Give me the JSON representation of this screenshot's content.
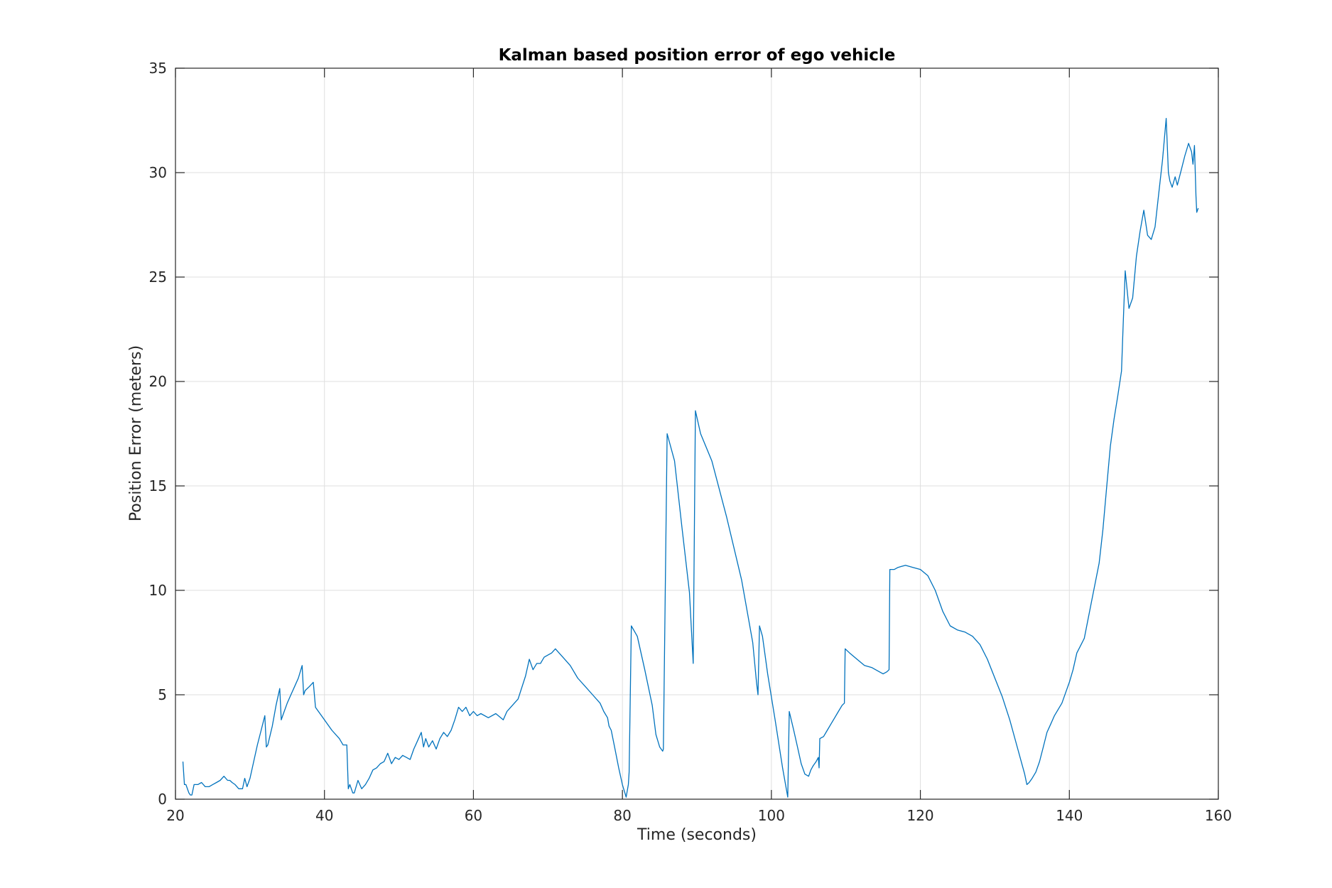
{
  "chart_data": {
    "type": "line",
    "title": "Kalman based position error of ego vehicle",
    "xlabel": "Time (seconds)",
    "ylabel": "Position Error (meters)",
    "xlim": [
      20,
      160
    ],
    "ylim": [
      0,
      35
    ],
    "xticks": [
      "20",
      "40",
      "60",
      "80",
      "100",
      "120",
      "140",
      "160"
    ],
    "yticks": [
      "0",
      "5",
      "10",
      "15",
      "20",
      "25",
      "30",
      "35"
    ],
    "grid": true,
    "line_color": "#0072BD",
    "series": [
      {
        "x": [
          21.0,
          21.2,
          21.4,
          21.8,
          22.0,
          22.2,
          22.5,
          23.0,
          23.5,
          24.0,
          24.5,
          25.0,
          25.5,
          26.0,
          26.5,
          27.0,
          27.3,
          27.6,
          28.0,
          28.5,
          29.0,
          29.3,
          29.6,
          30.0,
          30.5,
          31.0,
          31.5,
          32.0,
          32.2,
          32.4,
          32.6,
          33.0,
          33.5,
          34.0,
          34.2,
          34.5,
          35.0,
          35.5,
          36.0,
          36.5,
          37.0,
          37.2,
          37.4,
          38.0,
          38.5,
          38.8,
          39.0,
          40.0,
          41.0,
          42.0,
          42.5,
          43.0,
          43.2,
          43.4,
          43.8,
          44.0,
          44.5,
          45.0,
          45.5,
          46.0,
          46.5,
          47.0,
          47.5,
          48.0,
          48.5,
          49.0,
          49.5,
          50.0,
          50.5,
          51.0,
          51.5,
          52.0,
          52.5,
          53.0,
          53.3,
          53.6,
          54.0,
          54.5,
          55.0,
          55.5,
          56.0,
          56.5,
          57.0,
          57.5,
          58.0,
          58.5,
          59.0,
          59.5,
          60.0,
          60.5,
          61.0,
          62.0,
          63.0,
          64.0,
          64.5,
          65.0,
          66.0,
          67.0,
          67.5,
          68.0,
          68.5,
          69.0,
          69.5,
          70.0,
          70.5,
          71.0,
          71.5,
          72.0,
          73.0,
          74.0,
          75.0,
          76.0,
          77.0,
          77.5,
          78.0,
          78.2,
          78.5,
          79.0,
          79.5,
          80.0,
          80.5,
          80.8,
          80.9,
          81.2,
          82.0,
          83.0,
          84.0,
          84.5,
          85.0,
          85.4,
          85.5,
          86.0,
          87.0,
          88.0,
          89.0,
          89.4,
          89.5,
          89.8,
          90.5,
          92.0,
          94.0,
          96.0,
          97.5,
          98.0,
          98.2,
          98.4,
          98.8,
          99.5,
          100.5,
          101.5,
          102.0,
          102.2,
          102.4,
          103.0,
          103.5,
          104.0,
          104.5,
          105.0,
          105.3,
          105.6,
          106.0,
          106.3,
          106.4,
          106.5,
          107.0,
          107.5,
          108.0,
          108.5,
          109.0,
          109.5,
          109.8,
          109.9,
          110.5,
          111.5,
          112.5,
          113.5,
          114.5,
          115.0,
          115.5,
          115.8,
          115.9,
          116.5,
          117.0,
          118.0,
          119.0,
          120.0,
          121.0,
          122.0,
          123.0,
          124.0,
          125.0,
          126.0,
          127.0,
          128.0,
          129.0,
          130.0,
          131.0,
          132.0,
          133.0,
          134.0,
          134.3,
          134.6,
          135.0,
          135.5,
          136.0,
          136.5,
          137.0,
          137.5,
          138.0,
          139.0,
          139.8,
          140.0,
          140.5,
          141.0,
          142.0,
          143.0,
          144.0,
          144.5,
          145.0,
          145.5,
          146.0,
          146.5,
          147.0,
          147.2,
          147.5,
          148.0,
          148.5,
          149.0,
          149.5,
          150.0,
          150.5,
          151.0,
          151.5,
          152.0,
          152.5,
          153.0,
          153.3,
          153.5,
          153.8,
          154.2,
          154.5,
          155.0,
          155.5,
          156.0,
          156.4,
          156.6,
          156.8,
          157.0,
          157.1,
          157.3
        ],
        "y": [
          1.8,
          0.7,
          0.7,
          0.3,
          0.2,
          0.2,
          0.7,
          0.7,
          0.8,
          0.6,
          0.6,
          0.7,
          0.8,
          0.9,
          1.1,
          0.9,
          0.9,
          0.8,
          0.7,
          0.5,
          0.5,
          1.0,
          0.6,
          1.0,
          1.8,
          2.6,
          3.3,
          4.0,
          2.5,
          2.6,
          2.9,
          3.5,
          4.5,
          5.3,
          3.8,
          4.1,
          4.6,
          5.0,
          5.4,
          5.8,
          6.4,
          5.0,
          5.2,
          5.4,
          5.6,
          4.4,
          4.3,
          3.8,
          3.3,
          2.9,
          2.6,
          2.6,
          0.5,
          0.7,
          0.3,
          0.3,
          0.9,
          0.5,
          0.7,
          1.0,
          1.4,
          1.5,
          1.7,
          1.8,
          2.2,
          1.7,
          2.0,
          1.9,
          2.1,
          2.0,
          1.9,
          2.4,
          2.8,
          3.2,
          2.5,
          2.9,
          2.5,
          2.8,
          2.4,
          2.9,
          3.2,
          3.0,
          3.3,
          3.8,
          4.4,
          4.2,
          4.4,
          4.0,
          4.2,
          4.0,
          4.1,
          3.9,
          4.1,
          3.8,
          4.2,
          4.4,
          4.8,
          5.9,
          6.7,
          6.2,
          6.5,
          6.5,
          6.8,
          6.9,
          7.0,
          7.2,
          7.0,
          6.8,
          6.4,
          5.8,
          5.4,
          5.0,
          4.6,
          4.2,
          3.9,
          3.5,
          3.3,
          2.4,
          1.5,
          0.7,
          0.1,
          0.7,
          1.3,
          8.3,
          7.8,
          6.2,
          4.5,
          3.1,
          2.5,
          2.3,
          2.4,
          17.5,
          16.2,
          13.0,
          9.9,
          7.2,
          6.5,
          18.6,
          17.5,
          16.2,
          13.5,
          10.5,
          7.5,
          5.6,
          5.0,
          8.3,
          7.8,
          6.0,
          3.8,
          1.5,
          0.5,
          0.1,
          4.2,
          3.3,
          2.5,
          1.7,
          1.2,
          1.1,
          1.4,
          1.6,
          1.8,
          2.0,
          1.5,
          2.9,
          3.0,
          3.3,
          3.6,
          3.9,
          4.2,
          4.5,
          4.6,
          7.2,
          7.0,
          6.7,
          6.4,
          6.3,
          6.1,
          6.0,
          6.1,
          6.2,
          11.0,
          11.0,
          11.1,
          11.2,
          11.1,
          11.0,
          10.7,
          10.0,
          9.0,
          8.3,
          8.1,
          8.0,
          7.8,
          7.4,
          6.7,
          5.8,
          4.9,
          3.8,
          2.5,
          1.2,
          0.7,
          0.8,
          1.0,
          1.3,
          1.8,
          2.5,
          3.2,
          3.6,
          4.0,
          4.6,
          5.4,
          5.6,
          6.2,
          7.0,
          7.7,
          9.5,
          11.3,
          12.9,
          14.9,
          16.9,
          18.2,
          19.3,
          20.5,
          22.5,
          25.3,
          23.5,
          24.0,
          26.0,
          27.2,
          28.2,
          27.0,
          26.8,
          27.4,
          29.0,
          30.6,
          32.6,
          30.0,
          29.6,
          29.3,
          29.8,
          29.4,
          30.1,
          30.8,
          31.4,
          31.0,
          30.4,
          31.3,
          28.9,
          28.1,
          28.3
        ]
      }
    ]
  }
}
